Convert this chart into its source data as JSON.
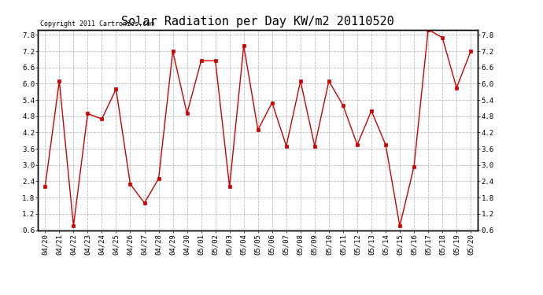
{
  "title": "Solar Radiation per Day KW/m2 20110520",
  "copyright_text": "Copyright 2011 Cartronics.com",
  "labels": [
    "04/20",
    "04/21",
    "04/22",
    "04/23",
    "04/24",
    "04/25",
    "04/26",
    "04/27",
    "04/28",
    "04/29",
    "04/30",
    "05/01",
    "05/02",
    "05/03",
    "05/04",
    "05/05",
    "05/06",
    "05/07",
    "05/08",
    "05/09",
    "05/10",
    "05/11",
    "05/12",
    "05/13",
    "05/14",
    "05/15",
    "05/16",
    "05/17",
    "05/18",
    "05/19",
    "05/20"
  ],
  "values": [
    2.2,
    6.1,
    0.75,
    4.9,
    4.7,
    5.8,
    2.3,
    1.6,
    2.5,
    7.2,
    4.9,
    6.85,
    6.85,
    2.2,
    7.4,
    4.3,
    5.3,
    3.7,
    6.1,
    3.7,
    6.1,
    5.2,
    3.75,
    5.0,
    3.75,
    0.75,
    2.95,
    8.0,
    7.7,
    5.85,
    7.2
  ],
  "line_color": "#cc0000",
  "marker": "s",
  "marker_size": 2.5,
  "marker_color": "#cc0000",
  "bg_color": "#ffffff",
  "grid_color": "#bbbbbb",
  "ylim": [
    0.6,
    8.0
  ],
  "yticks": [
    0.6,
    1.2,
    1.8,
    2.4,
    3.0,
    3.6,
    4.2,
    4.8,
    5.4,
    6.0,
    6.6,
    7.2,
    7.8
  ],
  "title_fontsize": 11,
  "tick_fontsize": 6.5,
  "copyright_fontsize": 6
}
